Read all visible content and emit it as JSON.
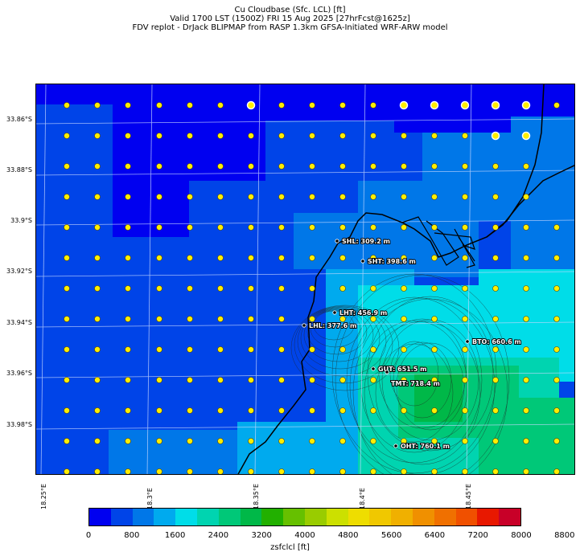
{
  "title": {
    "line1": "Cu Cloudbase (Sfc. LCL) [ft]",
    "line2": "Valid 1700 LST (1500Z) FRI 15 Aug 2025 [27hrFcst@1625z]",
    "line3": "FDV replot - DrJack BLIPMAP from RASP 1.3km GFSA-Initiated WRF-ARW model"
  },
  "axes": {
    "y_ticks": [
      "33.86°S",
      "33.88°S",
      "33.9°S",
      "33.92°S",
      "33.94°S",
      "33.96°S",
      "33.98°S"
    ],
    "x_ticks": [
      "18.25°E",
      "18.3°E",
      "18.35°E",
      "18.4°E",
      "18.45°E"
    ]
  },
  "stations": [
    {
      "name": "SHL: 309.2 m"
    },
    {
      "name": "SHT: 398.6 m"
    },
    {
      "name": "LHT: 456.9 m"
    },
    {
      "name": "LHL: 377.6 m"
    },
    {
      "name": "BTO: 660.6 m"
    },
    {
      "name": "GUT: 651.5 m"
    },
    {
      "name": "TMT: 718.4 m"
    },
    {
      "name": "OHT: 760.1 m"
    }
  ],
  "colorbar": {
    "title": "zsfclcl [ft]",
    "labels": [
      "0",
      "800",
      "1600",
      "2400",
      "3200",
      "4000",
      "4800",
      "5600",
      "6400",
      "7200",
      "8000",
      "8800"
    ],
    "colors": [
      "#0000f0",
      "#0044e8",
      "#0077e8",
      "#00aaee",
      "#00dde8",
      "#00d4b0",
      "#00c878",
      "#00b848",
      "#22b000",
      "#66c000",
      "#99cc00",
      "#cce000",
      "#eedd00",
      "#f0c800",
      "#f0b000",
      "#f09000",
      "#f07000",
      "#f05000",
      "#e81800",
      "#c80028"
    ]
  },
  "legend_note": ""
}
